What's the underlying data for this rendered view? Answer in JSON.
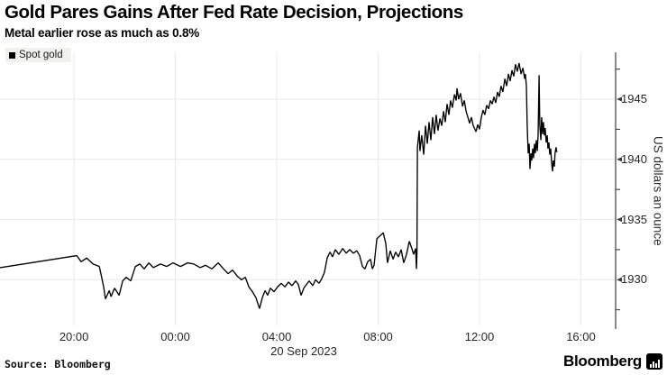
{
  "header": {
    "title": "Gold Pares Gains After Fed Rate Decision, Projections",
    "subtitle": "Metal earlier rose as much as 0.8%"
  },
  "legend": {
    "items": [
      {
        "label": "Spot gold",
        "color": "#000000"
      }
    ]
  },
  "axes": {
    "y": {
      "label": "US dollars an ounce",
      "side": "right",
      "ticks": [
        1945,
        1940,
        1935,
        1930
      ],
      "minor_ticks": [
        1947.5,
        1942.5,
        1937.5,
        1932.5,
        1927.5
      ],
      "range": [
        1925.9,
        1948.9
      ]
    },
    "x": {
      "unit": "hours since 19 Sep 2023 00:00",
      "ticks": [
        {
          "t": 20,
          "label": "20:00"
        },
        {
          "t": 24,
          "label": "00:00"
        },
        {
          "t": 28,
          "label": "04:00"
        },
        {
          "t": 32,
          "label": "08:00"
        },
        {
          "t": 36,
          "label": "12:00"
        },
        {
          "t": 40,
          "label": "16:00"
        }
      ],
      "date_label": "20 Sep 2023",
      "range": [
        17.08,
        41.37
      ]
    }
  },
  "chart_data": {
    "type": "line",
    "title": "Gold Pares Gains After Fed Rate Decision, Projections",
    "subtitle": "Metal earlier rose as much as 0.8%",
    "ylabel": "US dollars an ounce",
    "xlabel": "20 Sep 2023",
    "grid": true,
    "legend_position": "top-left",
    "line_color": "#000000",
    "grid_color": "#e9e9e9",
    "axis_color": "#3c3c3c",
    "ylim": [
      1925.9,
      1948.9
    ],
    "xlim": [
      17.08,
      41.37
    ],
    "series": [
      {
        "name": "Spot gold",
        "color": "#000000",
        "points": [
          [
            17.08,
            1931.0
          ],
          [
            20.11,
            1932.0
          ],
          [
            20.28,
            1931.5
          ],
          [
            20.5,
            1931.8
          ],
          [
            20.75,
            1931.3
          ],
          [
            21.0,
            1931.1
          ],
          [
            21.07,
            1930.4
          ],
          [
            21.17,
            1929.4
          ],
          [
            21.24,
            1928.4
          ],
          [
            21.39,
            1929.1
          ],
          [
            21.46,
            1928.6
          ],
          [
            21.6,
            1929.3
          ],
          [
            21.78,
            1928.7
          ],
          [
            21.92,
            1929.9
          ],
          [
            22.06,
            1930.2
          ],
          [
            22.24,
            1929.9
          ],
          [
            22.42,
            1931.1
          ],
          [
            22.6,
            1931.3
          ],
          [
            22.77,
            1930.9
          ],
          [
            22.95,
            1931.4
          ],
          [
            23.13,
            1931.0
          ],
          [
            23.41,
            1931.3
          ],
          [
            23.66,
            1931.1
          ],
          [
            23.91,
            1931.4
          ],
          [
            24.2,
            1931.1
          ],
          [
            24.48,
            1931.4
          ],
          [
            24.73,
            1931.3
          ],
          [
            24.98,
            1931.0
          ],
          [
            25.19,
            1931.2
          ],
          [
            25.44,
            1930.9
          ],
          [
            25.69,
            1931.4
          ],
          [
            25.9,
            1930.9
          ],
          [
            26.08,
            1930.5
          ],
          [
            26.26,
            1930.8
          ],
          [
            26.44,
            1930.3
          ],
          [
            26.61,
            1930.0
          ],
          [
            26.76,
            1930.2
          ],
          [
            26.9,
            1929.4
          ],
          [
            27.04,
            1929.0
          ],
          [
            27.18,
            1928.5
          ],
          [
            27.32,
            1927.6
          ],
          [
            27.43,
            1928.5
          ],
          [
            27.54,
            1929.1
          ],
          [
            27.64,
            1928.7
          ],
          [
            27.75,
            1929.3
          ],
          [
            27.89,
            1929.0
          ],
          [
            28.03,
            1929.4
          ],
          [
            28.18,
            1929.7
          ],
          [
            28.32,
            1929.4
          ],
          [
            28.46,
            1929.8
          ],
          [
            28.6,
            1929.5
          ],
          [
            28.75,
            1929.9
          ],
          [
            28.85,
            1929.6
          ],
          [
            28.96,
            1928.7
          ],
          [
            29.07,
            1929.3
          ],
          [
            29.17,
            1929.6
          ],
          [
            29.28,
            1929.9
          ],
          [
            29.42,
            1929.5
          ],
          [
            29.53,
            1930.0
          ],
          [
            29.67,
            1929.7
          ],
          [
            29.78,
            1930.1
          ],
          [
            29.88,
            1930.6
          ],
          [
            29.99,
            1931.8
          ],
          [
            30.1,
            1932.3
          ],
          [
            30.2,
            1931.9
          ],
          [
            30.31,
            1932.5
          ],
          [
            30.45,
            1932.1
          ],
          [
            30.6,
            1932.6
          ],
          [
            30.74,
            1932.2
          ],
          [
            30.88,
            1932.5
          ],
          [
            31.02,
            1932.2
          ],
          [
            31.16,
            1932.4
          ],
          [
            31.27,
            1932.0
          ],
          [
            31.38,
            1931.1
          ],
          [
            31.48,
            1930.9
          ],
          [
            31.59,
            1931.5
          ],
          [
            31.7,
            1931.7
          ],
          [
            31.77,
            1930.9
          ],
          [
            31.84,
            1931.2
          ],
          [
            31.95,
            1933.4
          ],
          [
            32.05,
            1933.6
          ],
          [
            32.2,
            1933.9
          ],
          [
            32.3,
            1933.0
          ],
          [
            32.37,
            1931.4
          ],
          [
            32.48,
            1932.4
          ],
          [
            32.59,
            1931.7
          ],
          [
            32.69,
            1932.3
          ],
          [
            32.8,
            1931.9
          ],
          [
            32.91,
            1932.5
          ],
          [
            33.01,
            1931.4
          ],
          [
            33.12,
            1932.1
          ],
          [
            33.23,
            1933.2
          ],
          [
            33.33,
            1932.6
          ],
          [
            33.4,
            1932.1
          ],
          [
            33.48,
            1932.6
          ],
          [
            33.51,
            1930.9
          ],
          [
            33.53,
            1932.2
          ],
          [
            33.55,
            1941.0
          ],
          [
            33.62,
            1942.4
          ],
          [
            33.65,
            1940.7
          ],
          [
            33.72,
            1942.0
          ],
          [
            33.8,
            1940.4
          ],
          [
            33.87,
            1942.8
          ],
          [
            33.94,
            1941.3
          ],
          [
            34.01,
            1943.1
          ],
          [
            34.08,
            1941.6
          ],
          [
            34.15,
            1943.5
          ],
          [
            34.22,
            1942.1
          ],
          [
            34.29,
            1943.7
          ],
          [
            34.36,
            1942.4
          ],
          [
            34.44,
            1943.4
          ],
          [
            34.51,
            1942.8
          ],
          [
            34.58,
            1944.0
          ],
          [
            34.65,
            1943.1
          ],
          [
            34.72,
            1944.6
          ],
          [
            34.79,
            1943.7
          ],
          [
            34.86,
            1944.9
          ],
          [
            34.93,
            1944.3
          ],
          [
            35.01,
            1945.4
          ],
          [
            35.08,
            1944.9
          ],
          [
            35.11,
            1945.9
          ],
          [
            35.18,
            1945.0
          ],
          [
            35.25,
            1945.5
          ],
          [
            35.33,
            1944.4
          ],
          [
            35.4,
            1944.9
          ],
          [
            35.47,
            1944.0
          ],
          [
            35.54,
            1943.5
          ],
          [
            35.61,
            1943.0
          ],
          [
            35.68,
            1943.5
          ],
          [
            35.75,
            1942.8
          ],
          [
            35.86,
            1942.3
          ],
          [
            35.93,
            1942.9
          ],
          [
            36.0,
            1942.5
          ],
          [
            36.07,
            1943.5
          ],
          [
            36.14,
            1944.1
          ],
          [
            36.21,
            1943.7
          ],
          [
            36.28,
            1944.5
          ],
          [
            36.36,
            1944.2
          ],
          [
            36.43,
            1944.9
          ],
          [
            36.5,
            1944.6
          ],
          [
            36.57,
            1945.2
          ],
          [
            36.64,
            1944.7
          ],
          [
            36.71,
            1945.6
          ],
          [
            36.78,
            1945.2
          ],
          [
            36.85,
            1946.1
          ],
          [
            36.92,
            1945.6
          ],
          [
            37.0,
            1946.7
          ],
          [
            37.07,
            1946.1
          ],
          [
            37.14,
            1947.1
          ],
          [
            37.21,
            1946.5
          ],
          [
            37.28,
            1947.4
          ],
          [
            37.35,
            1946.9
          ],
          [
            37.42,
            1947.9
          ],
          [
            37.49,
            1947.3
          ],
          [
            37.56,
            1948.0
          ],
          [
            37.64,
            1947.1
          ],
          [
            37.71,
            1947.6
          ],
          [
            37.78,
            1946.7
          ],
          [
            37.81,
            1947.1
          ],
          [
            37.85,
            1946.1
          ],
          [
            37.88,
            1942.8
          ],
          [
            37.92,
            1940.5
          ],
          [
            37.96,
            1941.3
          ],
          [
            37.99,
            1939.2
          ],
          [
            38.03,
            1940.5
          ],
          [
            38.06,
            1939.9
          ],
          [
            38.1,
            1940.9
          ],
          [
            38.13,
            1940.1
          ],
          [
            38.17,
            1941.3
          ],
          [
            38.2,
            1940.5
          ],
          [
            38.24,
            1941.6
          ],
          [
            38.28,
            1940.7
          ],
          [
            38.31,
            1942.0
          ],
          [
            38.35,
            1947.0
          ],
          [
            38.38,
            1942.8
          ],
          [
            38.42,
            1941.6
          ],
          [
            38.45,
            1943.5
          ],
          [
            38.49,
            1942.1
          ],
          [
            38.52,
            1943.1
          ],
          [
            38.56,
            1942.0
          ],
          [
            38.59,
            1942.6
          ],
          [
            38.63,
            1941.4
          ],
          [
            38.67,
            1942.0
          ],
          [
            38.7,
            1940.9
          ],
          [
            38.74,
            1941.4
          ],
          [
            38.77,
            1940.4
          ],
          [
            38.81,
            1940.9
          ],
          [
            38.84,
            1939.8
          ],
          [
            38.88,
            1939.0
          ],
          [
            38.91,
            1939.9
          ],
          [
            38.95,
            1939.4
          ],
          [
            38.98,
            1940.5
          ],
          [
            39.02,
            1941.0
          ],
          [
            39.05,
            1940.6
          ]
        ]
      }
    ]
  },
  "footer": {
    "source": "Source: Bloomberg",
    "brand": "Bloomberg"
  }
}
